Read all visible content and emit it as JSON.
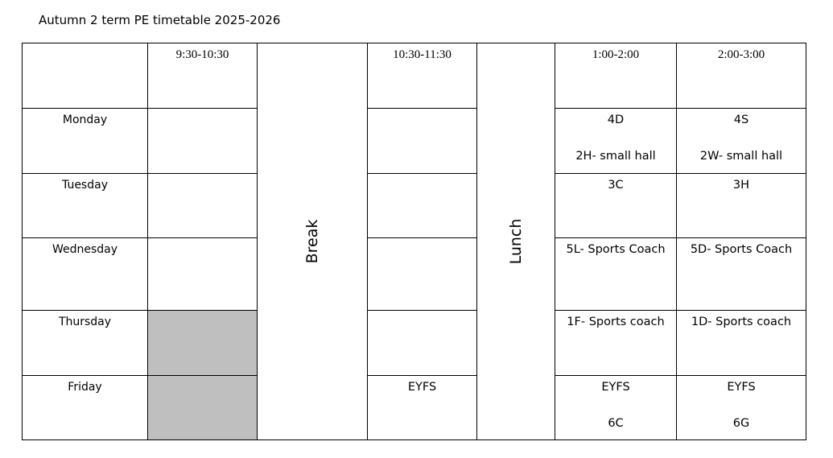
{
  "title": "Autumn 2 term PE timetable 2025-2026",
  "time_slots": [
    "9:30-10:30",
    "10:30-11:30",
    "1:00-2:00",
    "2:00-3:00"
  ],
  "breaks": [
    "Break",
    "Lunch"
  ],
  "rows": [
    {
      "day": "Monday",
      "slots": [
        [],
        [],
        [
          "4D",
          "2H- small hall"
        ],
        [
          "4S",
          "2W- small hall"
        ]
      ]
    },
    {
      "day": "Tuesday",
      "slots": [
        [],
        [],
        [
          "3C"
        ],
        [
          "3H"
        ]
      ]
    },
    {
      "day": "Wednesday",
      "slots": [
        [],
        [],
        [
          "5L- Sports Coach"
        ],
        [
          "5D- Sports Coach"
        ]
      ]
    },
    {
      "day": "Thursday",
      "slots": [
        [],
        [],
        [
          "1F- Sports coach"
        ],
        [
          "1D- Sports coach"
        ]
      ]
    },
    {
      "day": "Friday",
      "slots": [
        [],
        [
          "EYFS"
        ],
        [
          "EYFS",
          "6C"
        ],
        [
          "EYFS",
          "6G"
        ]
      ]
    }
  ]
}
